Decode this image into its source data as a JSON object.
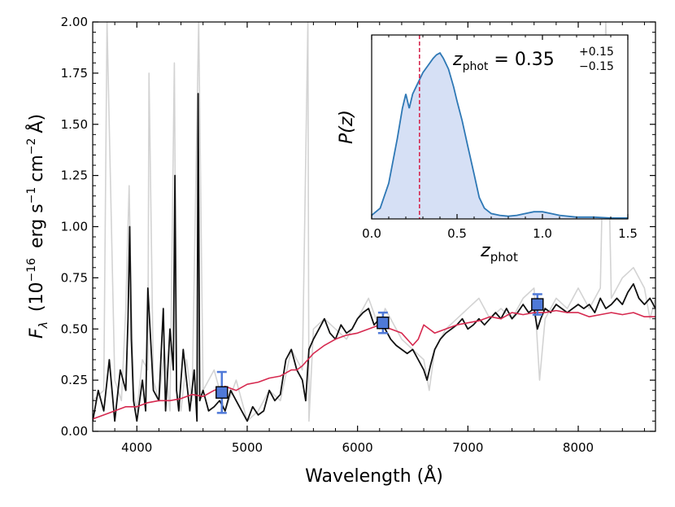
{
  "chart_data": [
    {
      "type": "line",
      "xlabel": "Wavelength  (Å)",
      "ylabel_parts": {
        "sym": "F",
        "sub": "λ",
        "pre": "(10",
        "exp": "−16",
        "unit1": "erg s",
        "unit2": "cm",
        "unit3": "Å)"
      },
      "xlim": [
        3600,
        8700
      ],
      "ylim": [
        0,
        2.0
      ],
      "xticks": [
        4000,
        5000,
        6000,
        7000,
        8000
      ],
      "yticks": [
        0.0,
        0.25,
        0.5,
        0.75,
        1.0,
        1.25,
        1.5,
        1.75,
        2.0
      ],
      "ytick_labels": [
        "0.00",
        "0.25",
        "0.50",
        "0.75",
        "1.00",
        "1.25",
        "1.50",
        "1.75",
        "2.00"
      ],
      "series": [
        {
          "role": "raw-spectrum",
          "color": "#d3d3d3",
          "x": [
            3600,
            3700,
            3730,
            3800,
            3860,
            3900,
            3930,
            3940,
            3970,
            4000,
            4050,
            4100,
            4110,
            4150,
            4200,
            4250,
            4300,
            4340,
            4360,
            4400,
            4450,
            4500,
            4560,
            4600,
            4700,
            4800,
            4900,
            5000,
            5100,
            5200,
            5300,
            5400,
            5500,
            5550,
            5560,
            5600,
            5700,
            5800,
            5900,
            6000,
            6100,
            6200,
            6250,
            6300,
            6400,
            6500,
            6600,
            6650,
            6700,
            6800,
            6900,
            7000,
            7100,
            7200,
            7300,
            7400,
            7500,
            7600,
            7650,
            7700,
            7800,
            7900,
            8000,
            8100,
            8200,
            8250,
            8300,
            8400,
            8500,
            8600,
            8650,
            8700
          ],
          "y": [
            0.15,
            0.2,
            2.0,
            0.25,
            0.15,
            0.6,
            1.2,
            0.9,
            0.2,
            0.1,
            0.35,
            0.3,
            1.75,
            0.25,
            0.15,
            0.4,
            0.1,
            1.8,
            0.2,
            0.1,
            0.35,
            0.15,
            2.0,
            0.2,
            0.3,
            0.1,
            0.25,
            0.05,
            0.1,
            0.2,
            0.15,
            0.4,
            0.3,
            2.0,
            0.05,
            0.5,
            0.55,
            0.5,
            0.45,
            0.55,
            0.65,
            0.5,
            0.6,
            0.55,
            0.45,
            0.4,
            0.35,
            0.2,
            0.4,
            0.5,
            0.55,
            0.6,
            0.65,
            0.55,
            0.6,
            0.55,
            0.65,
            0.7,
            0.25,
            0.55,
            0.65,
            0.6,
            0.7,
            0.6,
            0.7,
            2.0,
            0.65,
            0.75,
            0.8,
            0.7,
            0.55,
            0.65
          ]
        },
        {
          "role": "spectrum",
          "color": "#111111",
          "x": [
            3600,
            3650,
            3700,
            3750,
            3800,
            3850,
            3900,
            3920,
            3935,
            3950,
            3970,
            4000,
            4050,
            4080,
            4100,
            4150,
            4200,
            4240,
            4260,
            4300,
            4330,
            4345,
            4360,
            4380,
            4420,
            4480,
            4520,
            4545,
            4555,
            4570,
            4600,
            4650,
            4700,
            4750,
            4800,
            4850,
            4900,
            4950,
            5000,
            5050,
            5100,
            5150,
            5200,
            5250,
            5300,
            5350,
            5400,
            5450,
            5500,
            5530,
            5560,
            5600,
            5650,
            5700,
            5750,
            5800,
            5850,
            5900,
            5950,
            6000,
            6050,
            6100,
            6150,
            6200,
            6250,
            6300,
            6350,
            6400,
            6450,
            6500,
            6550,
            6600,
            6630,
            6660,
            6700,
            6750,
            6800,
            6850,
            6900,
            6950,
            7000,
            7050,
            7100,
            7150,
            7200,
            7250,
            7300,
            7350,
            7400,
            7450,
            7500,
            7550,
            7600,
            7630,
            7660,
            7700,
            7750,
            7800,
            7850,
            7900,
            7950,
            8000,
            8050,
            8100,
            8150,
            8200,
            8250,
            8300,
            8350,
            8400,
            8450,
            8500,
            8550,
            8600,
            8650,
            8700
          ],
          "y": [
            0.05,
            0.2,
            0.1,
            0.35,
            0.05,
            0.3,
            0.2,
            0.55,
            1.0,
            0.45,
            0.15,
            0.05,
            0.25,
            0.1,
            0.7,
            0.2,
            0.15,
            0.6,
            0.1,
            0.5,
            0.3,
            1.25,
            0.2,
            0.1,
            0.4,
            0.1,
            0.3,
            0.05,
            1.65,
            0.15,
            0.2,
            0.1,
            0.12,
            0.15,
            0.1,
            0.2,
            0.15,
            0.1,
            0.05,
            0.12,
            0.08,
            0.1,
            0.2,
            0.15,
            0.18,
            0.35,
            0.4,
            0.3,
            0.25,
            0.15,
            0.4,
            0.45,
            0.5,
            0.55,
            0.48,
            0.45,
            0.52,
            0.48,
            0.5,
            0.55,
            0.58,
            0.6,
            0.52,
            0.55,
            0.5,
            0.45,
            0.42,
            0.4,
            0.38,
            0.4,
            0.35,
            0.3,
            0.25,
            0.32,
            0.4,
            0.45,
            0.48,
            0.5,
            0.52,
            0.55,
            0.5,
            0.52,
            0.55,
            0.52,
            0.55,
            0.58,
            0.55,
            0.6,
            0.55,
            0.58,
            0.62,
            0.58,
            0.6,
            0.5,
            0.55,
            0.6,
            0.58,
            0.62,
            0.6,
            0.58,
            0.6,
            0.62,
            0.6,
            0.62,
            0.58,
            0.65,
            0.6,
            0.62,
            0.65,
            0.62,
            0.68,
            0.72,
            0.65,
            0.62,
            0.65,
            0.6
          ]
        },
        {
          "role": "model",
          "color": "#d6294f",
          "x": [
            3600,
            3700,
            3800,
            3900,
            4000,
            4100,
            4200,
            4300,
            4400,
            4500,
            4600,
            4700,
            4800,
            4900,
            5000,
            5100,
            5200,
            5300,
            5400,
            5450,
            5500,
            5600,
            5700,
            5800,
            5900,
            6000,
            6100,
            6200,
            6300,
            6400,
            6500,
            6550,
            6600,
            6650,
            6700,
            6800,
            6900,
            7000,
            7100,
            7200,
            7300,
            7400,
            7500,
            7600,
            7700,
            7800,
            7900,
            8000,
            8100,
            8200,
            8300,
            8400,
            8500,
            8600,
            8700
          ],
          "y": [
            0.06,
            0.08,
            0.1,
            0.12,
            0.12,
            0.14,
            0.15,
            0.15,
            0.16,
            0.18,
            0.17,
            0.2,
            0.22,
            0.2,
            0.23,
            0.24,
            0.26,
            0.27,
            0.3,
            0.3,
            0.32,
            0.38,
            0.42,
            0.45,
            0.47,
            0.48,
            0.5,
            0.52,
            0.5,
            0.48,
            0.42,
            0.45,
            0.52,
            0.5,
            0.48,
            0.5,
            0.52,
            0.53,
            0.54,
            0.56,
            0.55,
            0.58,
            0.57,
            0.58,
            0.58,
            0.59,
            0.58,
            0.58,
            0.56,
            0.57,
            0.58,
            0.57,
            0.58,
            0.56,
            0.56
          ]
        }
      ],
      "photometry": {
        "color": "#4f79d8",
        "points": [
          {
            "x": 4770,
            "y": 0.19,
            "yerr": 0.1
          },
          {
            "x": 6230,
            "y": 0.53,
            "yerr": 0.05
          },
          {
            "x": 7630,
            "y": 0.62,
            "yerr": 0.05
          }
        ]
      }
    },
    {
      "type": "area",
      "role": "inset",
      "xlabel_parts": {
        "sym": "z",
        "sub": "phot"
      },
      "ylabel": "P(z)",
      "xlim": [
        0,
        1.5
      ],
      "xticks": [
        0.0,
        0.5,
        1.0,
        1.5
      ],
      "xtick_labels": [
        "0.0",
        "0.5",
        "1.0",
        "1.5"
      ],
      "annotation": {
        "sym": "z",
        "sub": "phot",
        "value": "0.35",
        "plus": "+0.15",
        "minus": "−0.15"
      },
      "marker_line": {
        "x": 0.28,
        "color": "#d6294f"
      },
      "line_color": "#2e78b5",
      "fill_color": "#d6e0f5",
      "x": [
        0,
        0.05,
        0.1,
        0.15,
        0.18,
        0.2,
        0.22,
        0.24,
        0.26,
        0.28,
        0.3,
        0.33,
        0.36,
        0.38,
        0.4,
        0.42,
        0.45,
        0.48,
        0.5,
        0.53,
        0.56,
        0.6,
        0.63,
        0.66,
        0.7,
        0.75,
        0.8,
        0.85,
        0.9,
        0.95,
        1.0,
        1.05,
        1.1,
        1.2,
        1.3,
        1.4,
        1.5
      ],
      "y": [
        0.02,
        0.06,
        0.2,
        0.45,
        0.62,
        0.7,
        0.62,
        0.7,
        0.74,
        0.78,
        0.82,
        0.86,
        0.9,
        0.92,
        0.93,
        0.9,
        0.84,
        0.74,
        0.66,
        0.55,
        0.42,
        0.25,
        0.12,
        0.06,
        0.03,
        0.02,
        0.015,
        0.02,
        0.03,
        0.04,
        0.04,
        0.03,
        0.02,
        0.01,
        0.01,
        0.005,
        0.005
      ]
    }
  ]
}
